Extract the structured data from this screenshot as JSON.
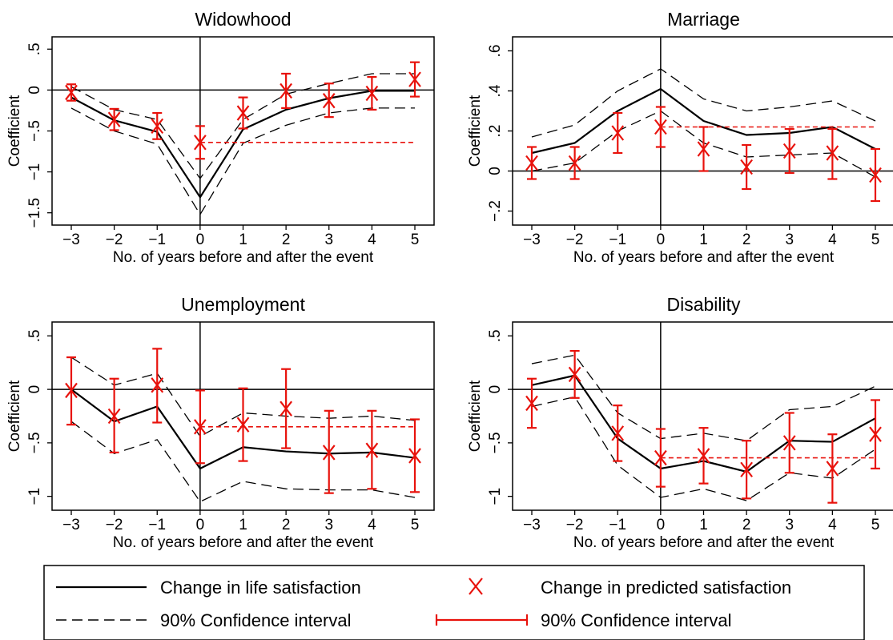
{
  "legend": {
    "items": [
      {
        "key": "life",
        "label": "Change in life satisfaction",
        "style": "solid-black"
      },
      {
        "key": "pred",
        "label": "Change in predicted satisfaction",
        "style": "red-x"
      },
      {
        "key": "ci_life",
        "label": "90% Confidence interval",
        "style": "dashed-black"
      },
      {
        "key": "ci_pred",
        "label": "90% Confidence interval",
        "style": "red-errorbar"
      }
    ]
  },
  "colors": {
    "life": "#000000",
    "predicted": "#e8120c"
  },
  "chart_data": [
    {
      "type": "line",
      "title": "Widowhood",
      "xlabel": "No. of years before and after the event",
      "ylabel": "Coefficient",
      "x": [
        -3,
        -2,
        -1,
        0,
        1,
        2,
        3,
        4,
        5
      ],
      "xticks": [
        "−3",
        "−2",
        "−1",
        "0",
        "1",
        "2",
        "3",
        "4",
        "5"
      ],
      "yticks": [
        {
          "v": 0.5,
          "label": ".5"
        },
        {
          "v": 0,
          "label": "0"
        },
        {
          "v": -0.5,
          "label": "−.5"
        },
        {
          "v": -1,
          "label": "−1"
        },
        {
          "v": -1.5,
          "label": "−1.5"
        }
      ],
      "ylim": [
        -1.65,
        0.65
      ],
      "life_satisfaction": [
        -0.09,
        -0.37,
        -0.51,
        -1.31,
        -0.48,
        -0.24,
        -0.1,
        -0.01,
        -0.01
      ],
      "life_ci_upper": [
        0.04,
        -0.24,
        -0.36,
        -1.08,
        -0.36,
        -0.05,
        0.08,
        0.2,
        0.2
      ],
      "life_ci_lower": [
        -0.22,
        -0.5,
        -0.66,
        -1.52,
        -0.65,
        -0.43,
        -0.28,
        -0.22,
        -0.22
      ],
      "predicted": [
        -0.03,
        -0.36,
        -0.44,
        -0.64,
        -0.28,
        -0.01,
        -0.13,
        -0.04,
        0.13
      ],
      "predicted_ci_upper": [
        0.07,
        -0.23,
        -0.28,
        -0.44,
        -0.09,
        0.2,
        0.08,
        0.16,
        0.34
      ],
      "predicted_ci_lower": [
        -0.13,
        -0.49,
        -0.6,
        -0.84,
        -0.47,
        -0.22,
        -0.33,
        -0.24,
        -0.08
      ],
      "post_event_mean": -0.64
    },
    {
      "type": "line",
      "title": "Marriage",
      "xlabel": "No. of years before and after the event",
      "ylabel": "Coefficient",
      "x": [
        -3,
        -2,
        -1,
        0,
        1,
        2,
        3,
        4,
        5
      ],
      "xticks": [
        "−3",
        "−2",
        "−1",
        "0",
        "1",
        "2",
        "3",
        "4",
        "5"
      ],
      "yticks": [
        {
          "v": 0.6,
          "label": ".6"
        },
        {
          "v": 0.4,
          "label": ".4"
        },
        {
          "v": 0.2,
          "label": ".2"
        },
        {
          "v": 0,
          "label": "0"
        },
        {
          "v": -0.2,
          "label": "−.2"
        }
      ],
      "ylim": [
        -0.27,
        0.67
      ],
      "life_satisfaction": [
        0.09,
        0.14,
        0.3,
        0.41,
        0.25,
        0.18,
        0.19,
        0.22,
        0.11
      ],
      "life_ci_upper": [
        0.17,
        0.23,
        0.4,
        0.51,
        0.36,
        0.3,
        0.32,
        0.35,
        0.25
      ],
      "life_ci_lower": [
        0.0,
        0.04,
        0.2,
        0.3,
        0.14,
        0.07,
        0.08,
        0.09,
        -0.03
      ],
      "predicted": [
        0.04,
        0.04,
        0.19,
        0.22,
        0.11,
        0.02,
        0.1,
        0.09,
        -0.02
      ],
      "predicted_ci_upper": [
        0.12,
        0.12,
        0.29,
        0.32,
        0.22,
        0.13,
        0.21,
        0.21,
        0.11
      ],
      "predicted_ci_lower": [
        -0.04,
        -0.04,
        0.09,
        0.12,
        0.0,
        -0.09,
        -0.01,
        -0.04,
        -0.15
      ],
      "post_event_mean": 0.22
    },
    {
      "type": "line",
      "title": "Unemployment",
      "xlabel": "No. of years before and after the event",
      "ylabel": "Coefficient",
      "x": [
        -3,
        -2,
        -1,
        0,
        1,
        2,
        3,
        4,
        5
      ],
      "xticks": [
        "−3",
        "−2",
        "−1",
        "0",
        "1",
        "2",
        "3",
        "4",
        "5"
      ],
      "yticks": [
        {
          "v": 0.5,
          "label": ".5"
        },
        {
          "v": 0,
          "label": "0"
        },
        {
          "v": -0.5,
          "label": "−.5"
        },
        {
          "v": -1,
          "label": "−1"
        }
      ],
      "ylim": [
        -1.13,
        0.63
      ],
      "life_satisfaction": [
        0.0,
        -0.3,
        -0.16,
        -0.74,
        -0.54,
        -0.58,
        -0.6,
        -0.59,
        -0.64
      ],
      "life_ci_upper": [
        0.3,
        0.04,
        0.15,
        -0.44,
        -0.22,
        -0.25,
        -0.27,
        -0.25,
        -0.29
      ],
      "life_ci_lower": [
        -0.3,
        -0.6,
        -0.47,
        -1.05,
        -0.86,
        -0.93,
        -0.94,
        -0.94,
        -1.01
      ],
      "predicted": [
        -0.01,
        -0.25,
        0.04,
        -0.35,
        -0.33,
        -0.18,
        -0.59,
        -0.57,
        -0.62
      ],
      "predicted_ci_upper": [
        0.3,
        0.1,
        0.38,
        -0.01,
        0.01,
        0.19,
        -0.2,
        -0.2,
        -0.28
      ],
      "predicted_ci_lower": [
        -0.33,
        -0.59,
        -0.31,
        -0.69,
        -0.67,
        -0.55,
        -0.97,
        -0.93,
        -0.96
      ],
      "post_event_mean": -0.35
    },
    {
      "type": "line",
      "title": "Disability",
      "xlabel": "No. of years before and after the event",
      "ylabel": "Coefficient",
      "x": [
        -3,
        -2,
        -1,
        0,
        1,
        2,
        3,
        4,
        5
      ],
      "xticks": [
        "−3",
        "−2",
        "−1",
        "0",
        "1",
        "2",
        "3",
        "4",
        "5"
      ],
      "yticks": [
        {
          "v": 0.5,
          "label": ".5"
        },
        {
          "v": 0,
          "label": "0"
        },
        {
          "v": -0.5,
          "label": "−.5"
        },
        {
          "v": -1,
          "label": "−1"
        }
      ],
      "ylim": [
        -1.13,
        0.63
      ],
      "life_satisfaction": [
        0.04,
        0.13,
        -0.46,
        -0.74,
        -0.67,
        -0.77,
        -0.48,
        -0.49,
        -0.27
      ],
      "life_ci_upper": [
        0.24,
        0.32,
        -0.22,
        -0.46,
        -0.41,
        -0.48,
        -0.19,
        -0.16,
        0.03
      ],
      "life_ci_lower": [
        -0.16,
        -0.07,
        -0.71,
        -1.01,
        -0.93,
        -1.04,
        -0.78,
        -0.83,
        -0.56
      ],
      "predicted": [
        -0.13,
        0.14,
        -0.41,
        -0.64,
        -0.62,
        -0.75,
        -0.5,
        -0.74,
        -0.42
      ],
      "predicted_ci_upper": [
        0.1,
        0.36,
        -0.15,
        -0.37,
        -0.36,
        -0.48,
        -0.22,
        -0.42,
        -0.1
      ],
      "predicted_ci_lower": [
        -0.36,
        -0.08,
        -0.67,
        -0.91,
        -0.88,
        -1.02,
        -0.78,
        -1.06,
        -0.74
      ],
      "post_event_mean": -0.64
    }
  ]
}
